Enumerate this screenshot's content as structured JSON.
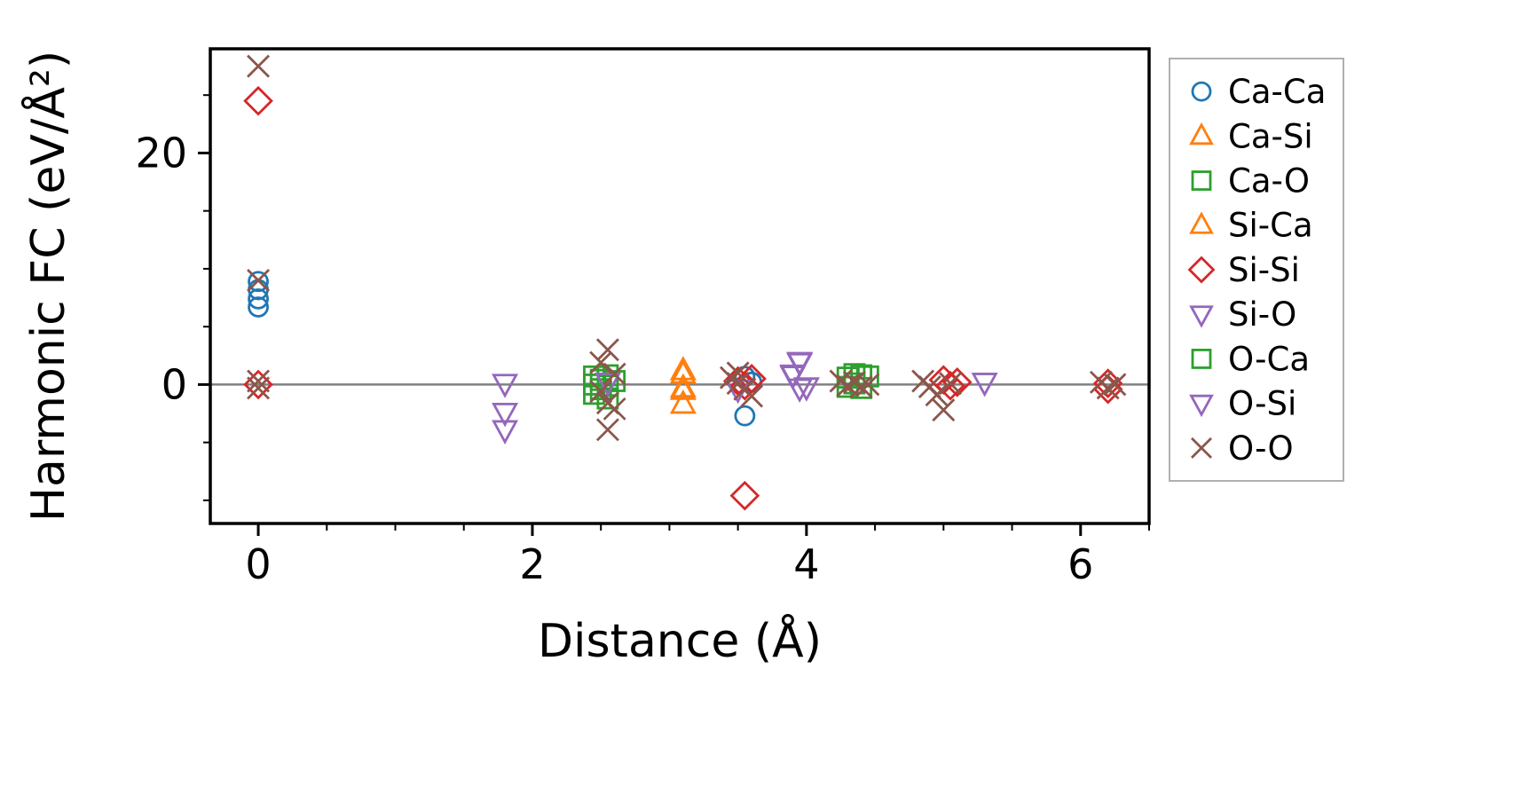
{
  "chart_data": {
    "type": "scatter",
    "title": "",
    "xlabel": "Distance (Å)",
    "ylabel": "Harmonic FC (eV/Å²)",
    "xlim": [
      -0.35,
      6.5
    ],
    "ylim": [
      -12,
      29
    ],
    "xticks": [
      0,
      2,
      4,
      6
    ],
    "yticks": [
      0,
      20
    ],
    "x_minor_step": 0.5,
    "y_minor_step": 5,
    "zero_line": 0,
    "zero_line_color": "#808080",
    "grid": false,
    "legend_position": "outside-right",
    "series": [
      {
        "name": "Ca-Ca",
        "marker": "circle",
        "color": "#1f77b4",
        "points": [
          [
            0,
            8.9
          ],
          [
            0,
            8.2
          ],
          [
            0,
            7.4
          ],
          [
            0,
            6.7
          ],
          [
            3.55,
            0.7
          ],
          [
            3.6,
            0.2
          ],
          [
            3.55,
            -2.7
          ]
        ]
      },
      {
        "name": "Ca-Si",
        "marker": "triangle-up",
        "color": "#ff7f0e",
        "points": [
          [
            3.1,
            1.2
          ],
          [
            3.1,
            -0.5
          ],
          [
            3.1,
            -1.7
          ]
        ]
      },
      {
        "name": "Ca-O",
        "marker": "square",
        "color": "#2ca02c",
        "points": [
          [
            2.45,
            0.7
          ],
          [
            2.45,
            0.0
          ],
          [
            2.45,
            -0.8
          ],
          [
            2.5,
            0.4
          ],
          [
            2.5,
            -0.4
          ],
          [
            2.55,
            0.8
          ],
          [
            2.55,
            -0.1
          ],
          [
            2.55,
            -1.2
          ],
          [
            2.6,
            0.3
          ]
        ]
      },
      {
        "name": "Si-Ca",
        "marker": "triangle-up",
        "color": "#ff7f0e",
        "points": [
          [
            3.1,
            0.9
          ],
          [
            3.1,
            -0.3
          ]
        ]
      },
      {
        "name": "Si-Si",
        "marker": "diamond",
        "color": "#d62728",
        "points": [
          [
            0,
            24.5
          ],
          [
            0,
            0.0
          ],
          [
            3.5,
            0.3
          ],
          [
            3.55,
            -0.1
          ],
          [
            3.6,
            0.5
          ],
          [
            3.55,
            -9.6
          ],
          [
            5.0,
            0.4
          ],
          [
            5.05,
            -0.1
          ],
          [
            5.1,
            0.2
          ],
          [
            6.2,
            0.1
          ],
          [
            6.2,
            -0.4
          ]
        ]
      },
      {
        "name": "Si-O",
        "marker": "triangle-down",
        "color": "#9467bd",
        "points": [
          [
            1.8,
            0.1
          ],
          [
            1.8,
            -2.4
          ],
          [
            1.8,
            -3.9
          ],
          [
            2.55,
            0.2
          ],
          [
            3.5,
            -0.4
          ],
          [
            3.95,
            1.9
          ],
          [
            3.9,
            0.8
          ],
          [
            3.95,
            -0.3
          ],
          [
            5.3,
            0.2
          ]
        ]
      },
      {
        "name": "O-Ca",
        "marker": "square",
        "color": "#2ca02c",
        "points": [
          [
            4.3,
            0.6
          ],
          [
            4.35,
            0.9
          ],
          [
            4.4,
            0.8
          ],
          [
            4.45,
            0.7
          ],
          [
            4.3,
            -0.2
          ],
          [
            4.35,
            0.1
          ],
          [
            4.4,
            -0.3
          ]
        ]
      },
      {
        "name": "O-Si",
        "marker": "triangle-down",
        "color": "#9467bd",
        "points": [
          [
            3.95,
            2.0
          ],
          [
            3.9,
            0.9
          ],
          [
            4.0,
            -0.2
          ]
        ]
      },
      {
        "name": "O-O",
        "marker": "x",
        "color": "#8c564b",
        "points": [
          [
            0,
            27.5
          ],
          [
            0,
            9.0
          ],
          [
            0,
            0.3
          ],
          [
            0,
            -0.3
          ],
          [
            2.55,
            3.0
          ],
          [
            2.5,
            1.9
          ],
          [
            2.6,
            0.9
          ],
          [
            2.5,
            -0.6
          ],
          [
            2.55,
            -1.6
          ],
          [
            2.6,
            -2.1
          ],
          [
            2.55,
            -3.9
          ],
          [
            3.45,
            0.6
          ],
          [
            3.5,
            1.0
          ],
          [
            3.5,
            0.1
          ],
          [
            3.55,
            -0.4
          ],
          [
            3.6,
            -1.0
          ],
          [
            4.25,
            0.3
          ],
          [
            4.3,
            -0.1
          ],
          [
            4.35,
            0.2
          ],
          [
            4.4,
            -0.2
          ],
          [
            4.45,
            0.0
          ],
          [
            4.85,
            0.3
          ],
          [
            4.9,
            -0.2
          ],
          [
            4.95,
            -0.9
          ],
          [
            5.0,
            -2.2
          ],
          [
            5.05,
            0.1
          ],
          [
            6.15,
            0.2
          ],
          [
            6.2,
            -0.3
          ],
          [
            6.25,
            0.0
          ]
        ]
      }
    ]
  }
}
